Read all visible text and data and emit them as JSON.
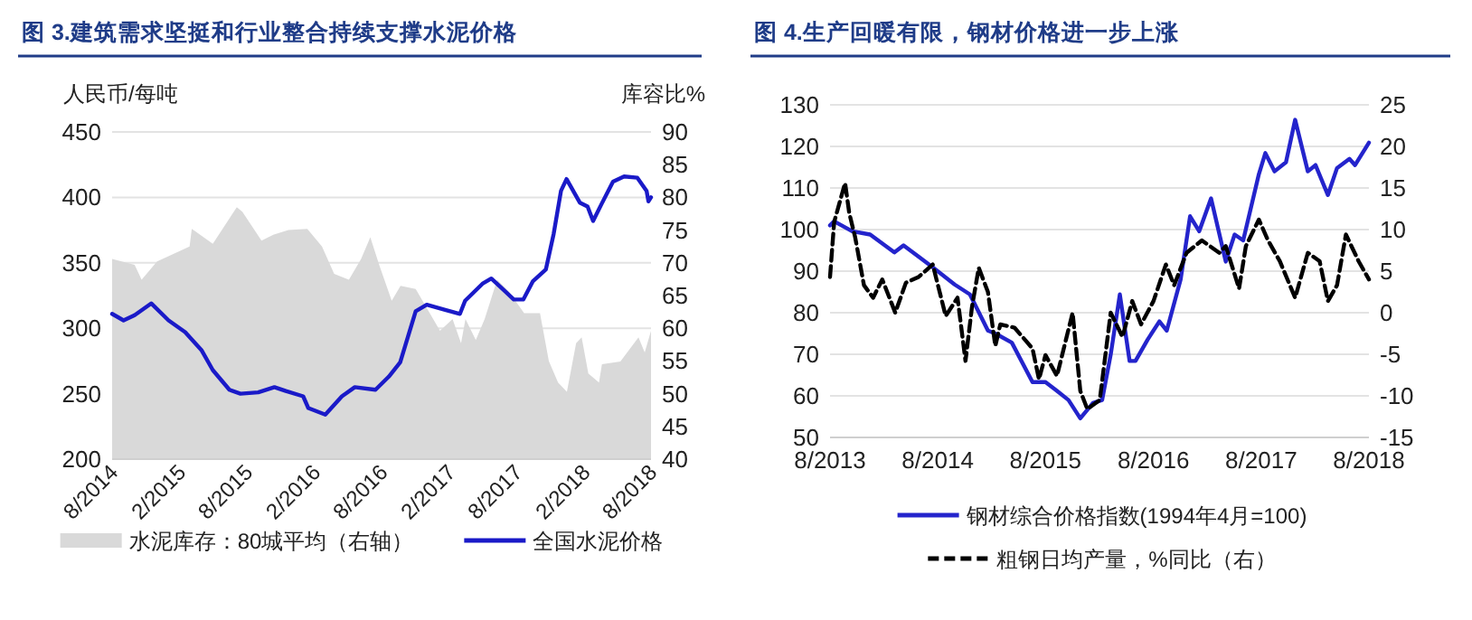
{
  "chart_data": [
    {
      "type": "line",
      "title": "图 3.建筑需求坚挺和行业整合持续支撑水泥价格",
      "ylabel": "人民币/每吨",
      "y2label": "库容比%",
      "xlim": [
        "2014-08",
        "2018-08"
      ],
      "xticks": [
        {
          "value": "2014-08",
          "label": "8/2014"
        },
        {
          "value": "2015-02",
          "label": "2/2015"
        },
        {
          "value": "2015-08",
          "label": "8/2015"
        },
        {
          "value": "2016-02",
          "label": "2/2016"
        },
        {
          "value": "2016-08",
          "label": "8/2016"
        },
        {
          "value": "2017-02",
          "label": "2/2017"
        },
        {
          "value": "2017-08",
          "label": "8/2017"
        },
        {
          "value": "2018-02",
          "label": "2/2018"
        },
        {
          "value": "2018-08",
          "label": "8/2018"
        }
      ],
      "ylim": [
        200,
        450
      ],
      "yticks": [
        200,
        250,
        300,
        350,
        400,
        450
      ],
      "y2lim": [
        40,
        90
      ],
      "y2ticks": [
        40,
        45,
        50,
        55,
        60,
        65,
        70,
        75,
        80,
        85,
        90
      ],
      "grid": "y",
      "legend": "bottom",
      "series": [
        {
          "name": "水泥库存：80城平均（右轴）",
          "type": "area",
          "axis": "y2",
          "color": "#d9d9d9",
          "x": [
            "2014-08-01",
            "2014-10-01",
            "2014-10-20",
            "2014-12-01",
            "2015-02-27",
            "2015-03-05",
            "2015-05-01",
            "2015-07-05",
            "2015-07-20",
            "2015-09-10",
            "2015-10-12",
            "2015-11-22",
            "2016-01-12",
            "2016-02-21",
            "2016-03-25",
            "2016-05-04",
            "2016-06-06",
            "2016-07-01",
            "2016-07-25",
            "2016-08-28",
            "2016-09-21",
            "2016-11-01",
            "2017-01-06",
            "2017-02-09",
            "2017-03-04",
            "2017-03-16",
            "2017-04-13",
            "2017-05-07",
            "2017-06-10",
            "2017-07-12",
            "2017-08-22",
            "2017-10-04",
            "2017-10-28",
            "2017-11-22",
            "2017-12-16",
            "2018-01-10",
            "2018-01-25",
            "2018-02-12",
            "2018-03-13",
            "2018-03-21",
            "2018-05-10",
            "2018-06-28",
            "2018-07-15",
            "2018-08-01"
          ],
          "values": [
            70.6,
            69.7,
            67.4,
            70.2,
            72.5,
            75.2,
            72.9,
            78.5,
            77.8,
            73.4,
            74.3,
            75,
            75.2,
            72.5,
            68.3,
            67.4,
            70.6,
            73.9,
            69.7,
            64.2,
            66.5,
            66,
            59.6,
            61.4,
            57.7,
            61.4,
            58.2,
            61.4,
            67.4,
            65.6,
            62.3,
            62.3,
            55,
            51.7,
            50.3,
            57.7,
            58.6,
            53.1,
            51.7,
            54.5,
            54.9,
            58.6,
            56.3,
            59.6
          ]
        },
        {
          "name": "全国水泥价格",
          "axis": "y",
          "color": "#1a1ac8",
          "x": [
            "2014-08-01",
            "2014-09-01",
            "2014-10-01",
            "2014-11-15",
            "2015-01-01",
            "2015-02-15",
            "2015-04-01",
            "2015-05-01",
            "2015-06-15",
            "2015-07-15",
            "2015-09-01",
            "2015-10-15",
            "2015-11-15",
            "2016-01-01",
            "2016-01-15",
            "2016-03-01",
            "2016-04-15",
            "2016-05-20",
            "2016-07-15",
            "2016-08-20",
            "2016-09-20",
            "2016-11-01",
            "2016-12-01",
            "2017-01-20",
            "2017-03-01",
            "2017-03-15",
            "2017-05-01",
            "2017-05-25",
            "2017-06-25",
            "2017-07-25",
            "2017-08-20",
            "2017-09-15",
            "2017-10-20",
            "2017-11-10",
            "2017-11-30",
            "2017-12-15",
            "2018-01-20",
            "2018-02-10",
            "2018-02-25",
            "2018-03-20",
            "2018-04-20",
            "2018-05-20",
            "2018-06-25",
            "2018-07-20",
            "2018-07-25",
            "2018-08-01"
          ],
          "values": [
            311,
            306,
            310,
            319,
            306,
            297,
            283,
            268,
            253,
            250,
            251,
            255,
            252,
            248,
            239,
            234,
            248,
            255,
            253,
            263,
            274,
            313,
            318,
            314,
            311,
            321,
            334,
            338,
            330,
            322,
            322,
            336,
            345,
            372,
            405,
            414,
            396,
            393,
            382,
            395,
            412,
            416,
            415,
            405,
            397,
            400
          ]
        }
      ]
    },
    {
      "type": "line",
      "title": "图 4.生产回暖有限，钢材价格进一步上涨",
      "xlim": [
        "2013-08",
        "2018-08"
      ],
      "xticks": [
        {
          "value": "2013-08",
          "label": "8/2013"
        },
        {
          "value": "2014-08",
          "label": "8/2014"
        },
        {
          "value": "2015-08",
          "label": "8/2015"
        },
        {
          "value": "2016-08",
          "label": "8/2016"
        },
        {
          "value": "2017-08",
          "label": "8/2017"
        },
        {
          "value": "2018-08",
          "label": "8/2018"
        }
      ],
      "ylim": [
        50,
        130
      ],
      "yticks": [
        50,
        60,
        70,
        80,
        90,
        100,
        110,
        120,
        130
      ],
      "y2lim": [
        -15,
        25
      ],
      "y2ticks": [
        -15,
        -10,
        -5,
        0,
        5,
        10,
        15,
        20,
        25
      ],
      "grid": "y",
      "legend": "bottom",
      "series": [
        {
          "name": "钢材综合价格指数(1994年4月=100)",
          "axis": "y",
          "color": "#2424cc",
          "line_style": "solid",
          "x": [
            "2013-08-01",
            "2013-08-15",
            "2013-10-15",
            "2013-12-15",
            "2014-03-07",
            "2014-04-07",
            "2014-07-15",
            "2014-09-27",
            "2014-11-18",
            "2015-01-18",
            "2015-02-15",
            "2015-04-09",
            "2015-06-18",
            "2015-08-01",
            "2015-09-09",
            "2015-10-18",
            "2015-11-27",
            "2016-01-09",
            "2016-02-09",
            "2016-03-09",
            "2016-04-09",
            "2016-05-12",
            "2016-06-01",
            "2016-07-12",
            "2016-08-21",
            "2016-09-15",
            "2016-11-01",
            "2016-12-03",
            "2017-01-03",
            "2017-02-12",
            "2017-04-03",
            "2017-05-03",
            "2017-06-01",
            "2017-07-24",
            "2017-08-15",
            "2017-09-15",
            "2017-10-24",
            "2017-11-24",
            "2018-01-06",
            "2018-02-01",
            "2018-03-15",
            "2018-04-15",
            "2018-05-27",
            "2018-06-15",
            "2018-08-01"
          ],
          "values": [
            101,
            102,
            99.6,
            98.8,
            94.5,
            96.2,
            90.9,
            86.8,
            84.4,
            75.7,
            74.9,
            72.8,
            63.3,
            63.3,
            61.2,
            59,
            54.6,
            58.3,
            59,
            69.9,
            84.4,
            68.4,
            68.4,
            73.5,
            77.9,
            75.7,
            88,
            103.2,
            99.6,
            107.5,
            92.3,
            98.8,
            97.4,
            113.3,
            118.4,
            114,
            116.2,
            126.4,
            114,
            115.5,
            108.3,
            114.8,
            117,
            115.5,
            120.9
          ]
        },
        {
          "name": "粗钢日均产量，%同比（右）",
          "axis": "y2",
          "color": "#000000",
          "line_style": "dashed",
          "x": [
            "2013-08-01",
            "2013-08-15",
            "2013-09-21",
            "2013-10-05",
            "2013-10-25",
            "2013-11-24",
            "2013-12-25",
            "2014-01-25",
            "2014-03-10",
            "2014-04-15",
            "2014-05-28",
            "2014-07-15",
            "2014-08-28",
            "2014-10-07",
            "2014-11-03",
            "2014-11-25",
            "2014-12-18",
            "2015-01-18",
            "2015-02-12",
            "2015-03-01",
            "2015-04-18",
            "2015-06-18",
            "2015-07-10",
            "2015-08-01",
            "2015-09-09",
            "2015-11-01",
            "2015-11-27",
            "2015-12-21",
            "2016-02-01",
            "2016-03-09",
            "2016-04-18",
            "2016-05-21",
            "2016-06-20",
            "2016-08-01",
            "2016-09-12",
            "2016-10-10",
            "2016-11-21",
            "2017-01-12",
            "2017-03-12",
            "2017-04-03",
            "2017-05-18",
            "2017-06-10",
            "2017-07-24",
            "2017-08-24",
            "2017-10-03",
            "2017-11-24",
            "2018-01-06",
            "2018-02-15",
            "2018-03-15",
            "2018-04-15",
            "2018-05-15",
            "2018-06-27",
            "2018-08-01"
          ],
          "values": [
            4.3,
            10.9,
            15.6,
            12,
            9.1,
            3.3,
            1.8,
            4,
            0,
            3.6,
            4.3,
            5.8,
            -0.4,
            1.8,
            -5.8,
            0.7,
            5.4,
            2.5,
            -4,
            -1.4,
            -1.8,
            -4.3,
            -8,
            -5.1,
            -7.6,
            0,
            -9.4,
            -11.6,
            -10.5,
            0,
            -2.9,
            1.4,
            -1.4,
            1.4,
            5.8,
            3.3,
            7.2,
            8.7,
            7.2,
            8,
            2.9,
            8,
            11.2,
            8.7,
            6.2,
            1.8,
            7.2,
            6.2,
            1.4,
            3.3,
            9.4,
            6.2,
            4
          ]
        }
      ]
    }
  ]
}
